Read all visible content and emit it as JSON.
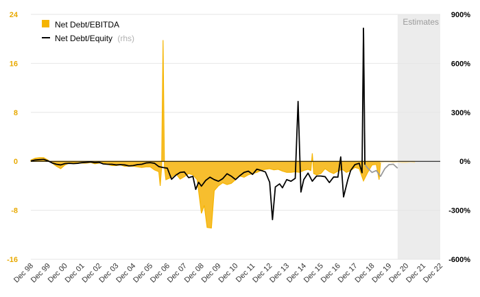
{
  "chart_data": {
    "type": "area+line",
    "estimates_label": "Estimates",
    "legend": {
      "placement": "top-left",
      "entries": [
        {
          "name": "Net Debt/EBITDA",
          "suffix": "",
          "color": "#f5b400",
          "kind": "area"
        },
        {
          "name": "Net Debt/Equity",
          "suffix": "(rhs)",
          "color": "#000000",
          "kind": "line"
        }
      ]
    },
    "y_left": {
      "min": -16,
      "max": 24,
      "ticks": [
        "24",
        "16",
        "8",
        "0",
        "-8",
        "-16"
      ],
      "tick_values": [
        24,
        16,
        8,
        0,
        -8,
        -16
      ]
    },
    "y_right": {
      "min": -600,
      "max": 900,
      "ticks": [
        "900%",
        "600%",
        "300%",
        "0%",
        "-300%",
        "-600%"
      ],
      "tick_values": [
        900,
        600,
        300,
        0,
        -300,
        -600
      ]
    },
    "x": {
      "start": 1998.917,
      "end": 2022.917,
      "tick_labels": [
        "Dec 98",
        "Dec 99",
        "Dec 00",
        "Dec 01",
        "Dec 02",
        "Dec 03",
        "Dec 04",
        "Dec 05",
        "Dec 06",
        "Dec 07",
        "Dec 08",
        "Dec 09",
        "Dec 10",
        "Dec 11",
        "Dec 12",
        "Dec 13",
        "Dec 14",
        "Dec 15",
        "Dec 16",
        "Dec 17",
        "Dec 18",
        "Dec 19",
        "Dec 20",
        "Dec 21",
        "Dec 22"
      ]
    },
    "estimates_from": 2020.417,
    "grid": "horizontal",
    "colors": {
      "area": "#f5b400",
      "area_fill": "#f7be2e",
      "line": "#000000",
      "estimate_line": "#9a9a9a",
      "estimate_area": "#fbe4a8",
      "estimate_bg": "#ececec",
      "zero_line": "#000000"
    },
    "series": [
      {
        "name": "Net Debt/EBITDA",
        "axis": "left",
        "points": [
          [
            1998.917,
            0.2
          ],
          [
            1999.167,
            0.5
          ],
          [
            1999.417,
            0.6
          ],
          [
            1999.667,
            0.6
          ],
          [
            1999.917,
            0.2
          ],
          [
            2000.167,
            -0.3
          ],
          [
            2000.417,
            -0.8
          ],
          [
            2000.667,
            -1.2
          ],
          [
            2000.917,
            -0.6
          ],
          [
            2001.167,
            -0.3
          ],
          [
            2001.417,
            -0.2
          ],
          [
            2001.667,
            -0.3
          ],
          [
            2001.917,
            -0.3
          ],
          [
            2002.167,
            -0.3
          ],
          [
            2002.417,
            -0.2
          ],
          [
            2002.667,
            -0.4
          ],
          [
            2002.917,
            -0.3
          ],
          [
            2003.167,
            -0.2
          ],
          [
            2003.417,
            -0.5
          ],
          [
            2003.667,
            -0.7
          ],
          [
            2003.917,
            -0.7
          ],
          [
            2004.167,
            -0.6
          ],
          [
            2004.417,
            -0.8
          ],
          [
            2004.667,
            -0.8
          ],
          [
            2004.917,
            -0.8
          ],
          [
            2005.167,
            -0.9
          ],
          [
            2005.417,
            -1.0
          ],
          [
            2005.667,
            -0.9
          ],
          [
            2005.917,
            -0.9
          ],
          [
            2006.167,
            -1.4
          ],
          [
            2006.417,
            -1.7
          ],
          [
            2006.5,
            -4.0
          ],
          [
            2006.583,
            -1.0
          ],
          [
            2006.667,
            19.8
          ],
          [
            2006.75,
            -1.0
          ],
          [
            2006.833,
            -3.0
          ],
          [
            2007.167,
            -2.6
          ],
          [
            2007.417,
            -2.0
          ],
          [
            2007.667,
            -2.9
          ],
          [
            2007.917,
            -2.5
          ],
          [
            2008.167,
            -2.0
          ],
          [
            2008.417,
            -2.2
          ],
          [
            2008.667,
            -3.0
          ],
          [
            2008.917,
            -8.5
          ],
          [
            2009.083,
            -7.2
          ],
          [
            2009.25,
            -10.8
          ],
          [
            2009.5,
            -10.9
          ],
          [
            2009.667,
            -4.8
          ],
          [
            2009.917,
            -4.0
          ],
          [
            2010.167,
            -3.5
          ],
          [
            2010.417,
            -3.8
          ],
          [
            2010.667,
            -3.6
          ],
          [
            2010.917,
            -3.0
          ],
          [
            2011.167,
            -2.4
          ],
          [
            2011.417,
            -2.6
          ],
          [
            2011.667,
            -2.2
          ],
          [
            2011.917,
            -2.0
          ],
          [
            2012.167,
            -1.8
          ],
          [
            2012.417,
            -1.5
          ],
          [
            2012.667,
            -1.3
          ],
          [
            2012.917,
            -1.2
          ],
          [
            2013.167,
            -1.4
          ],
          [
            2013.417,
            -1.3
          ],
          [
            2013.667,
            -1.6
          ],
          [
            2013.917,
            -1.8
          ],
          [
            2014.167,
            -1.8
          ],
          [
            2014.417,
            -1.7
          ],
          [
            2014.667,
            -1.8
          ],
          [
            2014.917,
            -1.5
          ],
          [
            2015.167,
            -1.3
          ],
          [
            2015.333,
            -1.5
          ],
          [
            2015.417,
            1.3
          ],
          [
            2015.5,
            -2.0
          ],
          [
            2015.667,
            -2.2
          ],
          [
            2015.917,
            -2.0
          ],
          [
            2016.167,
            -1.2
          ],
          [
            2016.417,
            -1.7
          ],
          [
            2016.667,
            -2.0
          ],
          [
            2016.917,
            -1.6
          ],
          [
            2017.167,
            -1.3
          ],
          [
            2017.417,
            -1.8
          ],
          [
            2017.667,
            -1.5
          ],
          [
            2017.917,
            -1.0
          ],
          [
            2018.167,
            -1.2
          ],
          [
            2018.417,
            -3.2
          ],
          [
            2018.667,
            -1.8
          ],
          [
            2018.917,
            -0.6
          ],
          [
            2019.167,
            -0.5
          ],
          [
            2019.333,
            -3.0
          ],
          [
            2019.417,
            -0.2
          ]
        ],
        "estimates": [
          [
            2019.417,
            -0.2
          ],
          [
            2019.667,
            -0.1
          ],
          [
            2019.917,
            -0.1
          ],
          [
            2020.167,
            -0.2
          ],
          [
            2020.417,
            -0.1
          ],
          [
            2020.667,
            -0.2
          ],
          [
            2020.917,
            -0.2
          ],
          [
            2021.167,
            -0.1
          ],
          [
            2021.417,
            -0.2
          ]
        ]
      },
      {
        "name": "Net Debt/Equity",
        "axis": "right",
        "points": [
          [
            1998.917,
            2
          ],
          [
            1999.167,
            8
          ],
          [
            1999.417,
            10
          ],
          [
            1999.667,
            12
          ],
          [
            1999.917,
            3
          ],
          [
            2000.167,
            -10
          ],
          [
            2000.417,
            -18
          ],
          [
            2000.667,
            -22
          ],
          [
            2000.917,
            -14
          ],
          [
            2001.167,
            -12
          ],
          [
            2001.417,
            -14
          ],
          [
            2001.667,
            -12
          ],
          [
            2001.917,
            -8
          ],
          [
            2002.167,
            -6
          ],
          [
            2002.417,
            -4
          ],
          [
            2002.667,
            -8
          ],
          [
            2002.917,
            -6
          ],
          [
            2003.167,
            -16
          ],
          [
            2003.417,
            -18
          ],
          [
            2003.667,
            -18
          ],
          [
            2003.917,
            -22
          ],
          [
            2004.167,
            -20
          ],
          [
            2004.417,
            -22
          ],
          [
            2004.667,
            -28
          ],
          [
            2004.917,
            -26
          ],
          [
            2005.167,
            -20
          ],
          [
            2005.417,
            -18
          ],
          [
            2005.667,
            -10
          ],
          [
            2005.917,
            -8
          ],
          [
            2006.167,
            -12
          ],
          [
            2006.417,
            -32
          ],
          [
            2006.667,
            -38
          ],
          [
            2006.917,
            -42
          ],
          [
            2007.167,
            -110
          ],
          [
            2007.417,
            -85
          ],
          [
            2007.667,
            -68
          ],
          [
            2007.917,
            -65
          ],
          [
            2008.167,
            -100
          ],
          [
            2008.417,
            -92
          ],
          [
            2008.583,
            -172
          ],
          [
            2008.75,
            -128
          ],
          [
            2008.917,
            -152
          ],
          [
            2009.167,
            -117
          ],
          [
            2009.417,
            -97
          ],
          [
            2009.667,
            -112
          ],
          [
            2009.917,
            -122
          ],
          [
            2010.167,
            -106
          ],
          [
            2010.417,
            -76
          ],
          [
            2010.667,
            -91
          ],
          [
            2010.917,
            -112
          ],
          [
            2011.167,
            -88
          ],
          [
            2011.417,
            -68
          ],
          [
            2011.667,
            -60
          ],
          [
            2011.917,
            -80
          ],
          [
            2012.167,
            -48
          ],
          [
            2012.417,
            -56
          ],
          [
            2012.667,
            -65
          ],
          [
            2012.917,
            -128
          ],
          [
            2013.083,
            -357
          ],
          [
            2013.25,
            -157
          ],
          [
            2013.5,
            -138
          ],
          [
            2013.667,
            -162
          ],
          [
            2013.917,
            -112
          ],
          [
            2014.167,
            -122
          ],
          [
            2014.417,
            -104
          ],
          [
            2014.583,
            367
          ],
          [
            2014.75,
            -188
          ],
          [
            2014.917,
            -112
          ],
          [
            2015.167,
            -72
          ],
          [
            2015.417,
            -122
          ],
          [
            2015.667,
            -90
          ],
          [
            2015.917,
            -90
          ],
          [
            2016.167,
            -94
          ],
          [
            2016.417,
            -130
          ],
          [
            2016.667,
            -96
          ],
          [
            2016.917,
            -97
          ],
          [
            2016.917,
            -97
          ],
          [
            2017.083,
            27
          ],
          [
            2017.25,
            -218
          ],
          [
            2017.5,
            -112
          ],
          [
            2017.667,
            -56
          ],
          [
            2017.917,
            -20
          ],
          [
            2017.917,
            -20
          ],
          [
            2018.167,
            -12
          ],
          [
            2018.333,
            -70
          ],
          [
            2018.417,
            818
          ]
        ],
        "estimates": [
          [
            2018.417,
            818
          ],
          [
            2018.5,
            -20
          ],
          [
            2018.667,
            -42
          ],
          [
            2018.917,
            -68
          ],
          [
            2019.167,
            -56
          ],
          [
            2019.417,
            -92
          ],
          [
            2019.667,
            -45
          ],
          [
            2019.917,
            -20
          ],
          [
            2020.167,
            -18
          ],
          [
            2020.417,
            -42
          ]
        ]
      }
    ]
  }
}
